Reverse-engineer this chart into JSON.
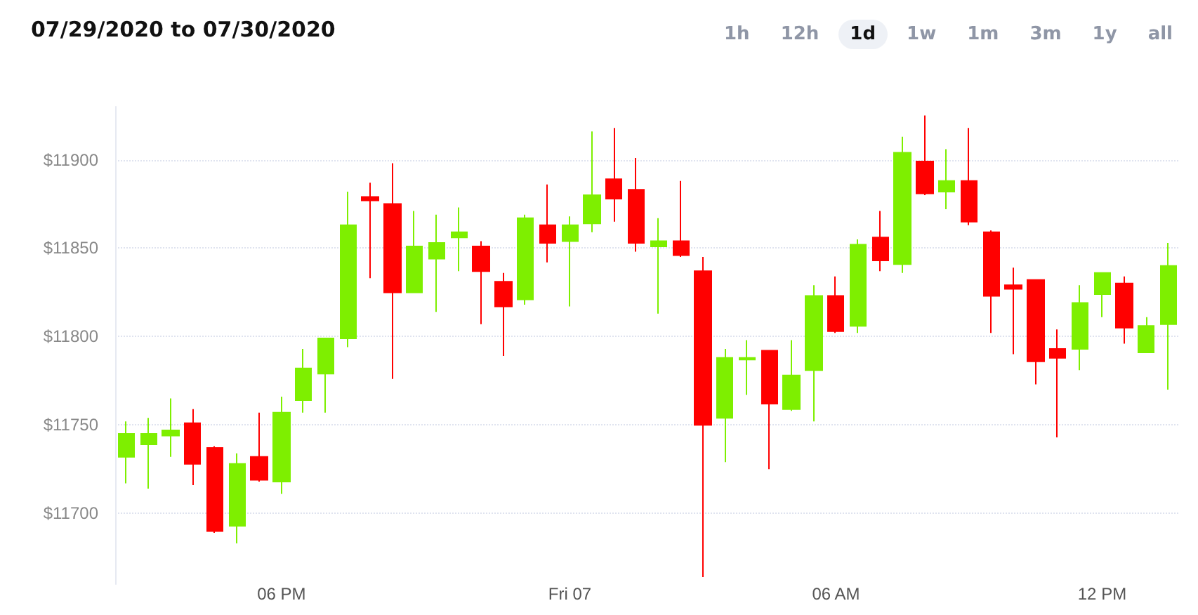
{
  "chart_data": {
    "type": "candlestick",
    "title": "07/29/2020 to 07/30/2020",
    "annotations": [
      "1h",
      "12h",
      "1d",
      "1w",
      "1m",
      "3m",
      "1y",
      "all"
    ],
    "categories": [
      null,
      null,
      null,
      null,
      null,
      null,
      null,
      "06 PM",
      null,
      null,
      null,
      null,
      null,
      null,
      null,
      null,
      null,
      null,
      null,
      null,
      "Fri 07",
      null,
      null,
      null,
      null,
      null,
      null,
      null,
      null,
      null,
      null,
      null,
      "06 AM",
      null,
      null,
      null,
      null,
      null,
      null,
      null,
      null,
      null,
      null,
      null,
      "12 PM",
      null,
      null,
      null
    ],
    "ohlc": [
      [
        11732,
        11752,
        11717,
        11745
      ],
      [
        11739,
        11754,
        11714,
        11745
      ],
      [
        11744,
        11765,
        11732,
        11747
      ],
      [
        11751,
        11759,
        11716,
        11728
      ],
      [
        11737,
        11738,
        11689,
        11690
      ],
      [
        11693,
        11734,
        11683,
        11728
      ],
      [
        11732,
        11757,
        11718,
        11719
      ],
      [
        11718,
        11766,
        11711,
        11757
      ],
      [
        11764,
        11793,
        11757,
        11782
      ],
      [
        11779,
        11799,
        11757,
        11799
      ],
      [
        11799,
        11882,
        11794,
        11863
      ],
      [
        11879,
        11887,
        11833,
        11877
      ],
      [
        11875,
        11898,
        11776,
        11825
      ],
      [
        11825,
        11871,
        11825,
        11851
      ],
      [
        11844,
        11869,
        11814,
        11853
      ],
      [
        11856,
        11873,
        11837,
        11859
      ],
      [
        11851,
        11854,
        11807,
        11837
      ],
      [
        11831,
        11836,
        11789,
        11817
      ],
      [
        11821,
        11869,
        11818,
        11867
      ],
      [
        11863,
        11886,
        11842,
        11853
      ],
      [
        11854,
        11868,
        11817,
        11863
      ],
      [
        11864,
        11916,
        11859,
        11880
      ],
      [
        11889,
        11918,
        11865,
        11878
      ],
      [
        11883,
        11901,
        11848,
        11853
      ],
      [
        11851,
        11867,
        11813,
        11854
      ],
      [
        11854,
        11888,
        11845,
        11846
      ],
      [
        11837,
        11845,
        11664,
        11750
      ],
      [
        11754,
        11793,
        11729,
        11788
      ],
      [
        11787,
        11798,
        11767,
        11788
      ],
      [
        11792,
        11792,
        11725,
        11762
      ],
      [
        11759,
        11798,
        11758,
        11778
      ],
      [
        11781,
        11829,
        11752,
        11823
      ],
      [
        11823,
        11834,
        11802,
        11803
      ],
      [
        11806,
        11855,
        11802,
        11852
      ],
      [
        11856,
        11871,
        11837,
        11843
      ],
      [
        11841,
        11913,
        11836,
        11904
      ],
      [
        11899,
        11925,
        11880,
        11881
      ],
      [
        11882,
        11906,
        11872,
        11888
      ],
      [
        11888,
        11918,
        11863,
        11865
      ],
      [
        11859,
        11860,
        11802,
        11823
      ],
      [
        11829,
        11839,
        11790,
        11827
      ],
      [
        11832,
        11832,
        11773,
        11786
      ],
      [
        11793,
        11804,
        11743,
        11788
      ],
      [
        11793,
        11829,
        11781,
        11819
      ],
      [
        11824,
        11836,
        11811,
        11836
      ],
      [
        11830,
        11834,
        11796,
        11805
      ],
      [
        11791,
        11811,
        11791,
        11806
      ],
      [
        11807,
        11853,
        11770,
        11840
      ]
    ],
    "colors": [
      "#7eef00",
      "#7eef00",
      "#7eef00",
      "#ff0000",
      "#ff0000",
      "#7eef00",
      "#ff0000",
      "#7eef00",
      "#7eef00",
      "#7eef00",
      "#7eef00",
      "#ff0000",
      "#ff0000",
      "#7eef00",
      "#7eef00",
      "#7eef00",
      "#ff0000",
      "#ff0000",
      "#7eef00",
      "#ff0000",
      "#7eef00",
      "#7eef00",
      "#ff0000",
      "#ff0000",
      "#7eef00",
      "#ff0000",
      "#ff0000",
      "#7eef00",
      "#7eef00",
      "#ff0000",
      "#7eef00",
      "#7eef00",
      "#ff0000",
      "#7eef00",
      "#ff0000",
      "#7eef00",
      "#ff0000",
      "#7eef00",
      "#ff0000",
      "#ff0000",
      "#ff0000",
      "#ff0000",
      "#ff0000",
      "#7eef00",
      "#7eef00",
      "#ff0000",
      "#7eef00",
      "#7eef00"
    ],
    "ylim": [
      11660,
      11930
    ],
    "yticks": [
      {
        "value": 11700,
        "label": "$11700"
      },
      {
        "value": 11750,
        "label": "$11750"
      },
      {
        "value": 11800,
        "label": "$11800"
      },
      {
        "value": 11850,
        "label": "$11850"
      },
      {
        "value": 11900,
        "label": "$11900"
      }
    ],
    "grid": "y"
  }
}
